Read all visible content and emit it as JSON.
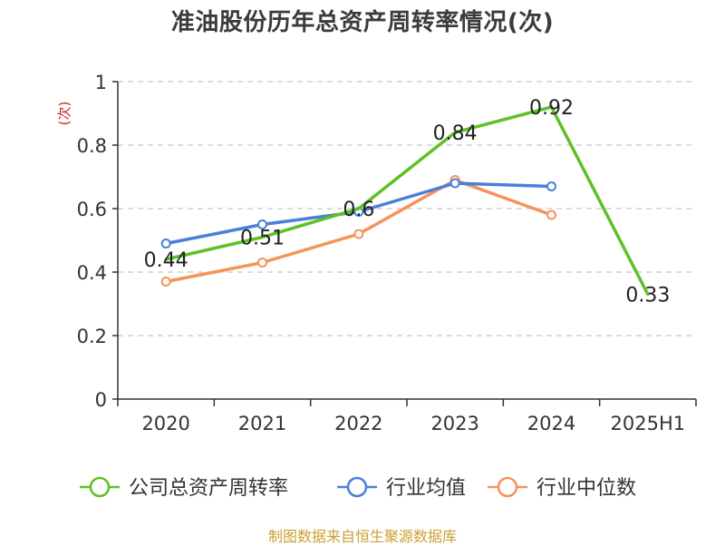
{
  "title": "准油股份历年总资产周转率情况(次)",
  "source": "制图数据来自恒生聚源数据库",
  "chart_data": {
    "type": "line",
    "title": "准油股份历年总资产周转率情况(次)",
    "ylabel": "(次)",
    "xlabel": "",
    "ylim": [
      0,
      1
    ],
    "yticks": [
      "0",
      "0.2",
      "0.4",
      "0.6",
      "0.8",
      "1"
    ],
    "categories": [
      "2020",
      "2021",
      "2022",
      "2023",
      "2024",
      "2025H1"
    ],
    "grid": true,
    "legend_position": "bottom",
    "series": [
      {
        "name": "公司总资产周转率",
        "color": "#5ec125",
        "values": [
          0.44,
          0.51,
          0.6,
          0.84,
          0.92,
          0.33
        ],
        "labels": [
          "0.44",
          "0.51",
          "0.6",
          "0.84",
          "0.92",
          "0.33"
        ]
      },
      {
        "name": "行业均值",
        "color": "#4a80d9",
        "values": [
          0.49,
          0.55,
          0.59,
          0.68,
          0.67,
          null
        ]
      },
      {
        "name": "行业中位数",
        "color": "#f5935a",
        "values": [
          0.37,
          0.43,
          0.52,
          0.69,
          0.58,
          null
        ]
      }
    ]
  }
}
